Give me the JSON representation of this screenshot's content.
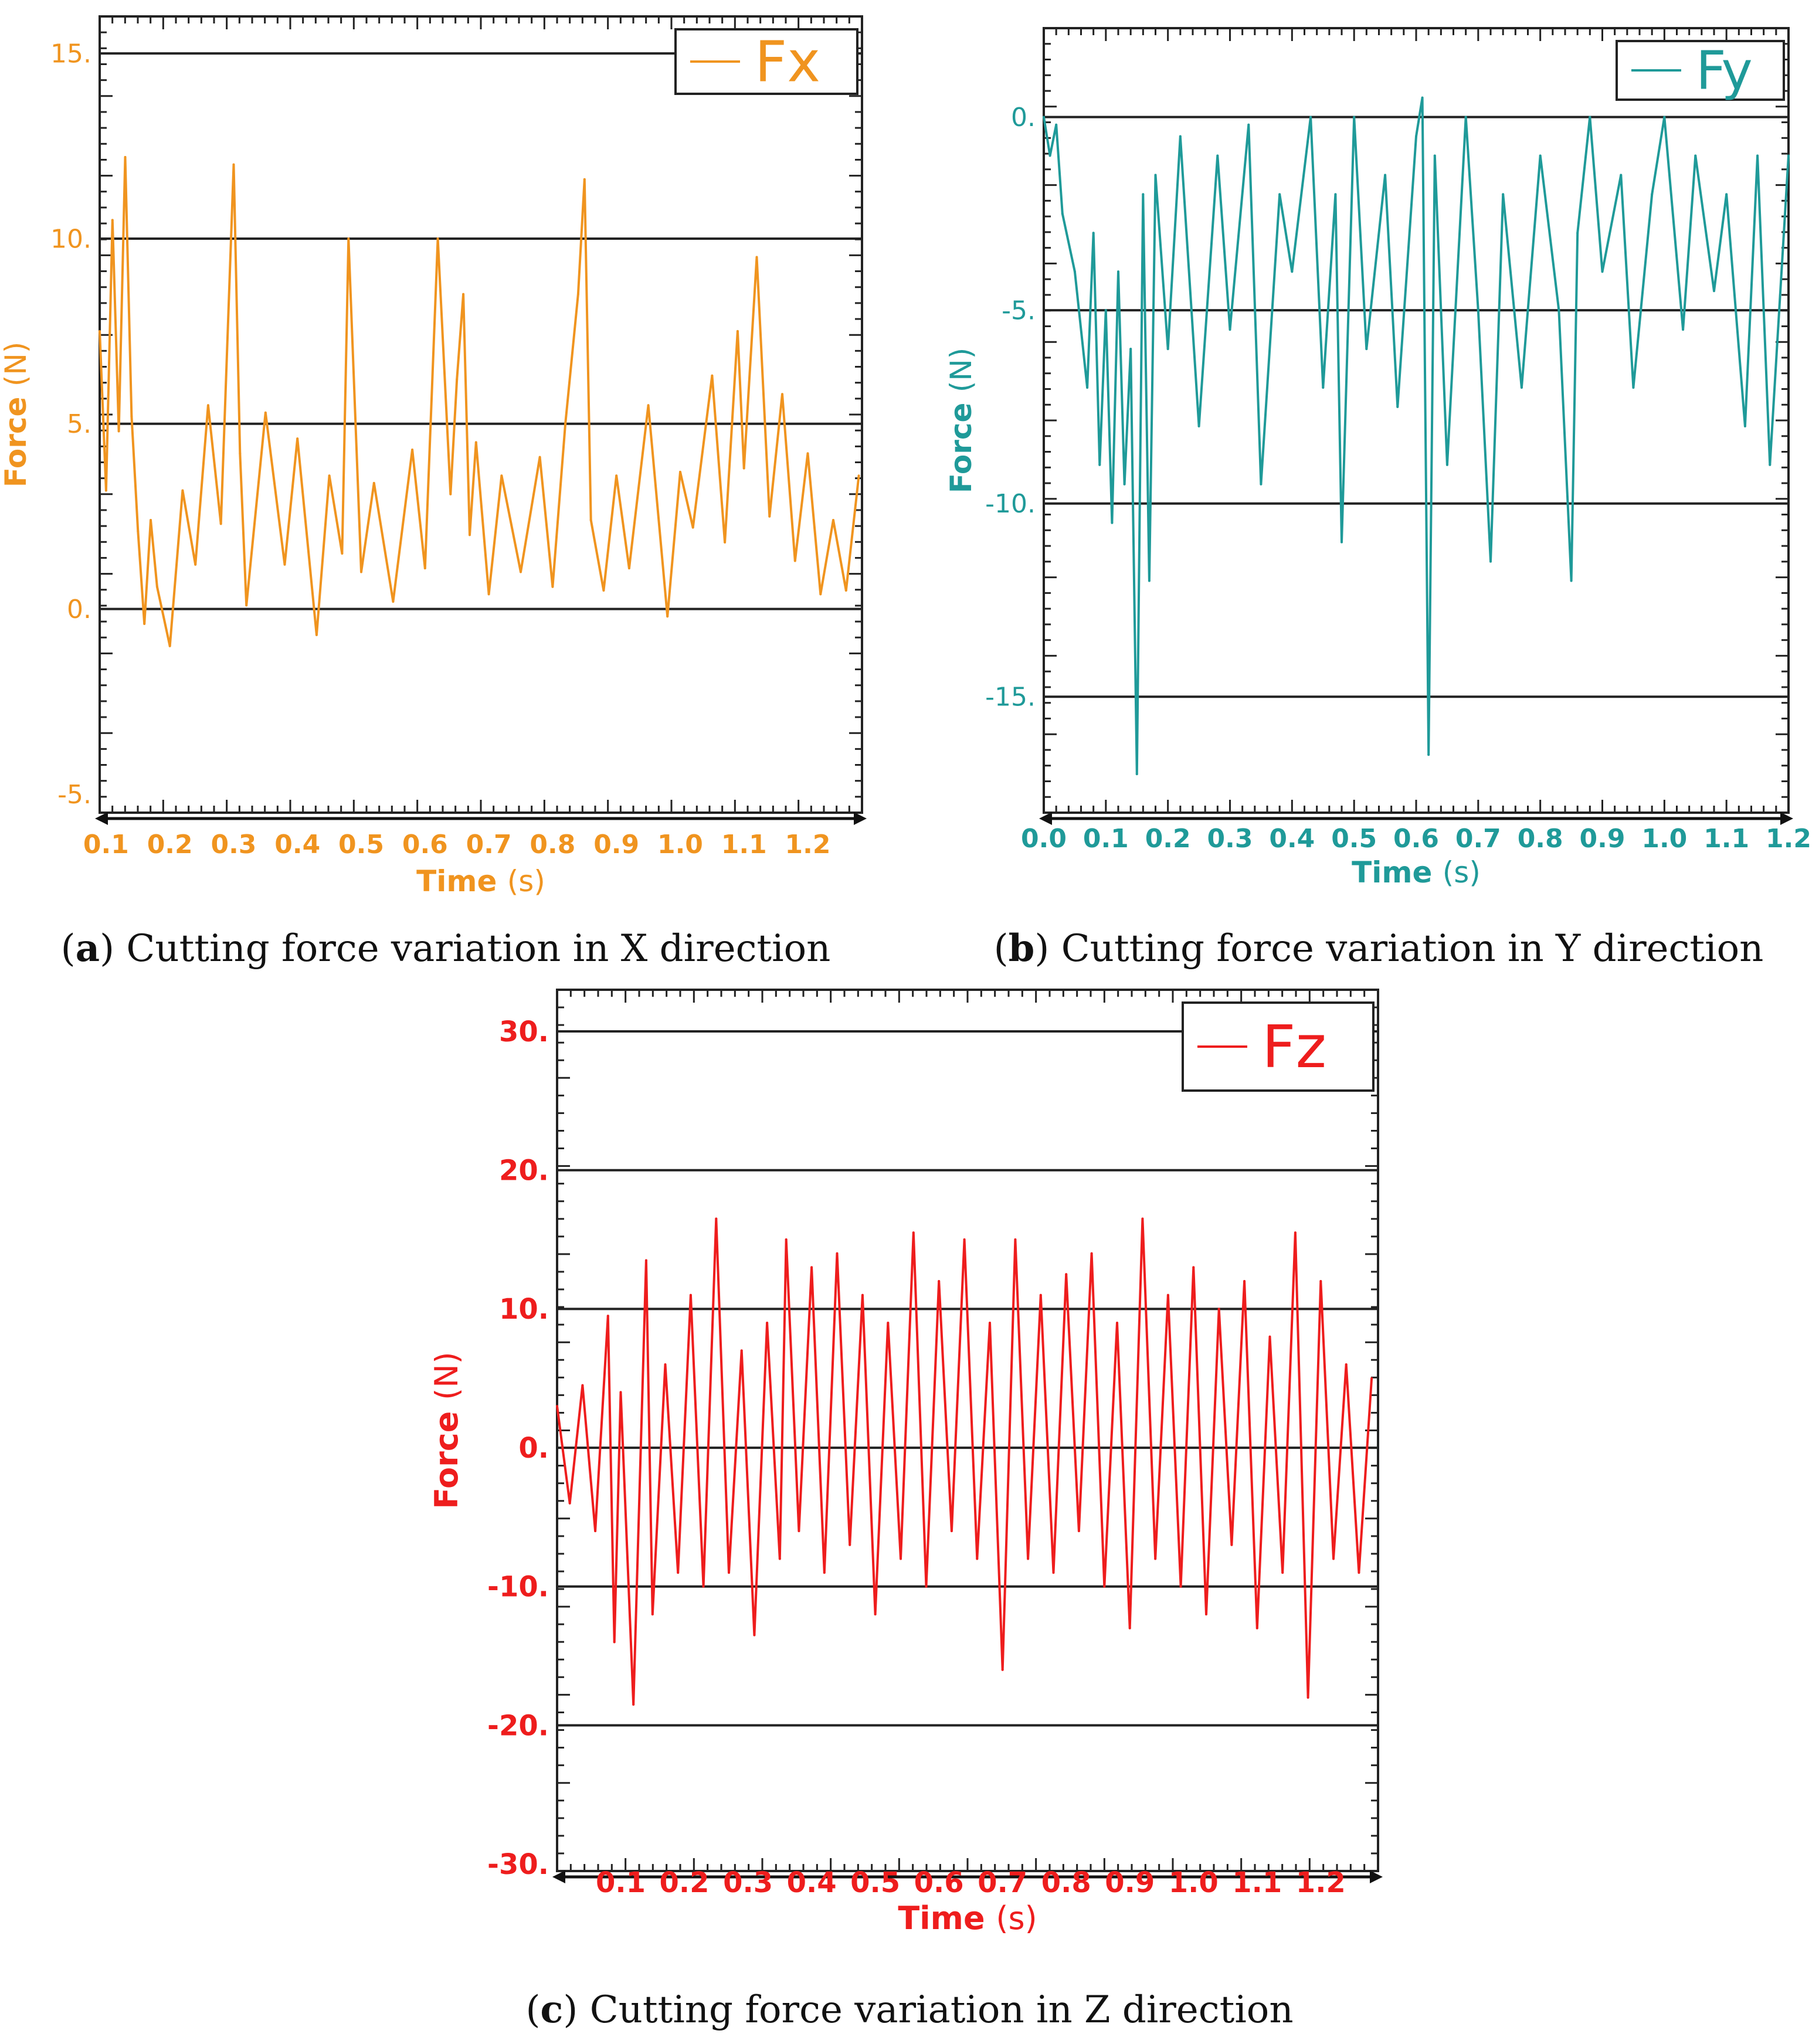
{
  "colors": {
    "fx": "#f0941f",
    "fy": "#1f9a99",
    "fz": "#ee1d1d",
    "ink": "#111111",
    "grid": "#222222"
  },
  "chart_data": [
    {
      "id": "a",
      "type": "line",
      "title": "",
      "legend_position": "top-right",
      "xlabel": "Time",
      "xunit": "(s)",
      "ylabel": "Force",
      "yunit": "(N)",
      "xlim": [
        0.09,
        1.285
      ],
      "ylim": [
        -5.5,
        16
      ],
      "xticks": [
        0.1,
        0.2,
        0.3,
        0.4,
        0.5,
        0.6,
        0.7,
        0.8,
        0.9,
        1.0,
        1.1,
        1.2
      ],
      "xtick_labels": [
        "0.1",
        "0.2",
        "0.3",
        "0.4",
        "0.5",
        "0.6",
        "0.7",
        "0.8",
        "0.9",
        "1.0",
        "1.1",
        "1.2"
      ],
      "yticks": [
        -5,
        0,
        5,
        10,
        15
      ],
      "ytick_labels": [
        "-5.",
        "0.",
        "5.",
        "10.",
        "15."
      ],
      "gridlines_y": [
        0,
        5,
        10,
        15
      ],
      "series": [
        {
          "name": "Fx",
          "x": [
            0.09,
            0.1,
            0.11,
            0.12,
            0.13,
            0.14,
            0.15,
            0.16,
            0.17,
            0.18,
            0.2,
            0.22,
            0.24,
            0.26,
            0.28,
            0.3,
            0.31,
            0.32,
            0.35,
            0.38,
            0.4,
            0.43,
            0.45,
            0.47,
            0.48,
            0.5,
            0.52,
            0.55,
            0.58,
            0.6,
            0.62,
            0.64,
            0.65,
            0.66,
            0.67,
            0.68,
            0.7,
            0.72,
            0.75,
            0.78,
            0.8,
            0.82,
            0.84,
            0.85,
            0.86,
            0.88,
            0.9,
            0.92,
            0.95,
            0.98,
            1.0,
            1.02,
            1.05,
            1.07,
            1.09,
            1.1,
            1.12,
            1.14,
            1.16,
            1.18,
            1.2,
            1.22,
            1.24,
            1.26,
            1.28
          ],
          "values": [
            7.5,
            3.2,
            10.5,
            4.8,
            12.2,
            5.2,
            2.1,
            -0.4,
            2.4,
            0.6,
            -1.0,
            3.2,
            1.2,
            5.5,
            2.3,
            12.0,
            4.2,
            0.1,
            5.3,
            1.2,
            4.6,
            -0.7,
            3.6,
            1.5,
            10.0,
            1.0,
            3.4,
            0.2,
            4.3,
            1.1,
            10.0,
            3.1,
            6.2,
            8.5,
            2.0,
            4.5,
            0.4,
            3.6,
            1.0,
            4.1,
            0.6,
            5.0,
            8.5,
            11.6,
            2.4,
            0.5,
            3.6,
            1.1,
            5.5,
            -0.2,
            3.7,
            2.2,
            6.3,
            1.8,
            7.5,
            3.8,
            9.5,
            2.5,
            5.8,
            1.3,
            4.2,
            0.4,
            2.4,
            0.5,
            3.6
          ]
        }
      ]
    },
    {
      "id": "b",
      "type": "line",
      "title": "",
      "legend_position": "top-right",
      "xlabel": "Time",
      "xunit": "(s)",
      "ylabel": "Force",
      "yunit": "(N)",
      "xlim": [
        0.0,
        1.2
      ],
      "ylim": [
        -18,
        2.3
      ],
      "xticks": [
        0.0,
        0.1,
        0.2,
        0.3,
        0.4,
        0.5,
        0.6,
        0.7,
        0.8,
        0.9,
        1.0,
        1.1,
        1.2
      ],
      "xtick_labels": [
        "0.0",
        "0.1",
        "0.2",
        "0.3",
        "0.4",
        "0.5",
        "0.6",
        "0.7",
        "0.8",
        "0.9",
        "1.0",
        "1.1",
        "1.2"
      ],
      "yticks": [
        0,
        -5,
        -10,
        -15
      ],
      "ytick_labels": [
        "0.",
        "-5.",
        "-10.",
        "-15."
      ],
      "gridlines_y": [
        0,
        -5,
        -10,
        -15
      ],
      "series": [
        {
          "name": "Fy",
          "x": [
            0.0,
            0.01,
            0.02,
            0.03,
            0.05,
            0.07,
            0.08,
            0.09,
            0.1,
            0.11,
            0.12,
            0.13,
            0.14,
            0.15,
            0.16,
            0.17,
            0.18,
            0.2,
            0.22,
            0.25,
            0.28,
            0.3,
            0.33,
            0.35,
            0.38,
            0.4,
            0.43,
            0.45,
            0.47,
            0.48,
            0.5,
            0.52,
            0.55,
            0.57,
            0.6,
            0.61,
            0.62,
            0.63,
            0.65,
            0.68,
            0.7,
            0.72,
            0.74,
            0.77,
            0.8,
            0.83,
            0.85,
            0.86,
            0.88,
            0.9,
            0.93,
            0.95,
            0.98,
            1.0,
            1.03,
            1.05,
            1.08,
            1.1,
            1.13,
            1.15,
            1.17,
            1.2
          ],
          "values": [
            0.0,
            -1.0,
            -0.2,
            -2.5,
            -4.0,
            -7.0,
            -3.0,
            -9.0,
            -5.0,
            -10.5,
            -4.0,
            -9.5,
            -6.0,
            -17.0,
            -2.0,
            -12.0,
            -1.5,
            -6.0,
            -0.5,
            -8.0,
            -1.0,
            -5.5,
            -0.2,
            -9.5,
            -2.0,
            -4.0,
            0.0,
            -7.0,
            -2.0,
            -11.0,
            0.0,
            -6.0,
            -1.5,
            -7.5,
            -0.5,
            0.5,
            -16.5,
            -1.0,
            -9.0,
            0.0,
            -5.0,
            -11.5,
            -2.0,
            -7.0,
            -1.0,
            -5.0,
            -12.0,
            -3.0,
            0.0,
            -4.0,
            -1.5,
            -7.0,
            -2.0,
            0.0,
            -5.5,
            -1.0,
            -4.5,
            -2.0,
            -8.0,
            -1.0,
            -9.0,
            -1.0
          ]
        }
      ]
    },
    {
      "id": "c",
      "type": "line",
      "title": "",
      "legend_position": "top-right",
      "xlabel": "Time",
      "xunit": "(s)",
      "ylabel": "Force",
      "yunit": "(N)",
      "xlim": [
        0.0,
        1.29
      ],
      "ylim": [
        -30.5,
        33
      ],
      "xticks": [
        0.1,
        0.2,
        0.3,
        0.4,
        0.5,
        0.6,
        0.7,
        0.8,
        0.9,
        1.0,
        1.1,
        1.2
      ],
      "xtick_labels": [
        "0.1",
        "0.2",
        "0.3",
        "0.4",
        "0.5",
        "0.6",
        "0.7",
        "0.8",
        "0.9",
        "1.0",
        "1.1",
        "1.2"
      ],
      "yticks": [
        30,
        20,
        10,
        0,
        -10,
        -20,
        -30
      ],
      "ytick_labels": [
        "30.",
        "20.",
        "10.",
        "0.",
        "-10.",
        "-20.",
        "-30."
      ],
      "gridlines_y": [
        30,
        20,
        10,
        0,
        -10,
        -20
      ],
      "series": [
        {
          "name": "Fz",
          "x": [
            0.0,
            0.02,
            0.04,
            0.06,
            0.08,
            0.09,
            0.1,
            0.12,
            0.14,
            0.15,
            0.17,
            0.19,
            0.21,
            0.23,
            0.25,
            0.27,
            0.29,
            0.31,
            0.33,
            0.35,
            0.36,
            0.38,
            0.4,
            0.42,
            0.44,
            0.46,
            0.48,
            0.5,
            0.52,
            0.54,
            0.56,
            0.58,
            0.6,
            0.62,
            0.64,
            0.66,
            0.68,
            0.7,
            0.72,
            0.74,
            0.76,
            0.78,
            0.8,
            0.82,
            0.84,
            0.86,
            0.88,
            0.9,
            0.92,
            0.94,
            0.96,
            0.98,
            1.0,
            1.02,
            1.04,
            1.06,
            1.08,
            1.1,
            1.12,
            1.14,
            1.16,
            1.18,
            1.2,
            1.22,
            1.24,
            1.26,
            1.28
          ],
          "values": [
            3.0,
            -4.0,
            4.5,
            -6.0,
            9.5,
            -14.0,
            4.0,
            -18.5,
            13.5,
            -12.0,
            6.0,
            -9.0,
            11.0,
            -10.0,
            16.5,
            -9.0,
            7.0,
            -13.5,
            9.0,
            -8.0,
            15.0,
            -6.0,
            13.0,
            -9.0,
            14.0,
            -7.0,
            11.0,
            -12.0,
            9.0,
            -8.0,
            15.5,
            -10.0,
            12.0,
            -6.0,
            15.0,
            -8.0,
            9.0,
            -16.0,
            15.0,
            -8.0,
            11.0,
            -9.0,
            12.5,
            -6.0,
            14.0,
            -10.0,
            9.0,
            -13.0,
            16.5,
            -8.0,
            11.0,
            -10.0,
            13.0,
            -12.0,
            10.0,
            -7.0,
            12.0,
            -13.0,
            8.0,
            -9.0,
            15.5,
            -18.0,
            12.0,
            -8.0,
            6.0,
            -9.0,
            5.0
          ]
        }
      ]
    }
  ],
  "captions": [
    {
      "id": "a",
      "letter": "a",
      "text": "Cutting force variation in X direction"
    },
    {
      "id": "b",
      "letter": "b",
      "text": "Cutting force variation in Y direction"
    },
    {
      "id": "c",
      "letter": "c",
      "text": "Cutting force variation in Z direction"
    }
  ]
}
